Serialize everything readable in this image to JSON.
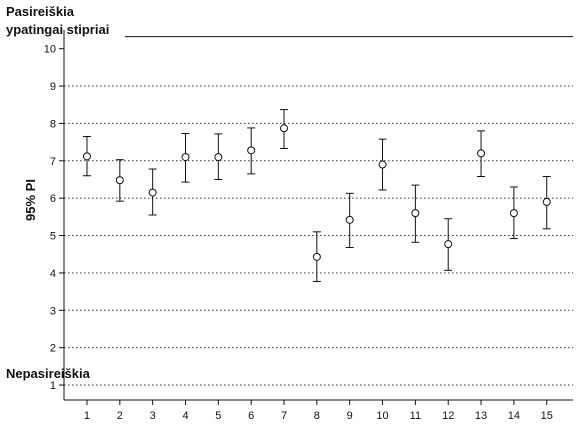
{
  "chart_data": {
    "type": "scatter",
    "ylabel": "95% PI",
    "annotations": {
      "top_line1": "Pasireiškia",
      "top_line2": "ypatingai stipriai",
      "bottom": "Nepasireiškia"
    },
    "x": [
      1,
      2,
      3,
      4,
      5,
      6,
      7,
      8,
      9,
      10,
      11,
      12,
      13,
      14,
      15
    ],
    "x_tick_labels": [
      "1",
      "2",
      "3",
      "4",
      "5",
      "6",
      "7",
      "8",
      "9",
      "10",
      "11",
      "12",
      "13",
      "14",
      "15"
    ],
    "y_tick_labels": [
      "1",
      "2",
      "3",
      "4",
      "5",
      "6",
      "7",
      "8",
      "9",
      "10"
    ],
    "series": [
      {
        "mean": [
          7.12,
          6.48,
          6.15,
          7.1,
          7.1,
          7.28,
          7.87,
          4.43,
          5.42,
          6.9,
          5.6,
          4.77,
          7.2,
          5.6,
          5.9
        ],
        "lower": [
          6.6,
          5.92,
          5.55,
          6.43,
          6.5,
          6.65,
          7.33,
          3.77,
          4.68,
          6.22,
          4.82,
          4.07,
          6.58,
          4.92,
          5.18
        ],
        "upper": [
          7.65,
          7.03,
          6.78,
          7.73,
          7.72,
          7.88,
          8.37,
          5.1,
          6.13,
          7.58,
          6.35,
          5.45,
          7.8,
          6.3,
          6.58
        ]
      }
    ],
    "xlim": [
      0.3,
      15.8
    ],
    "ylim": [
      0.6,
      10.5
    ],
    "grid": "horizontal dotted"
  }
}
